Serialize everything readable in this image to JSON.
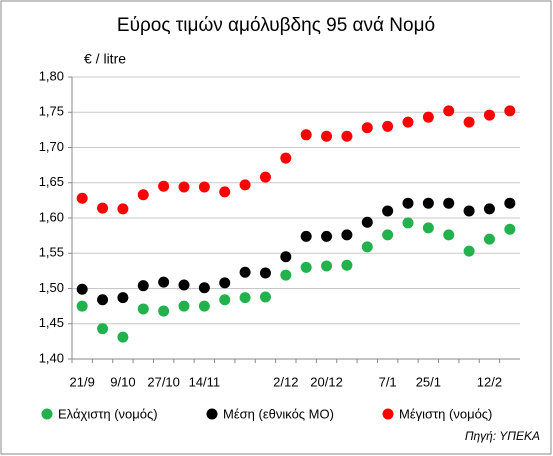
{
  "chart_data": {
    "type": "scatter",
    "title": "Εύρος τιμών αμόλυβδης 95 ανά Νομό",
    "y_label": "€ / litre",
    "source": "Πηγή: ΥΠΕΚΑ",
    "categories": [
      "21/9",
      null,
      "9/10",
      null,
      "27/10",
      null,
      "14/11",
      null,
      null,
      null,
      "2/12",
      null,
      "20/12",
      null,
      null,
      "7/1",
      null,
      "25/1",
      null,
      null,
      "12/2",
      null
    ],
    "series": [
      {
        "name": "Ελάχιστη (νομός)",
        "color": "#22b14c",
        "values": [
          1.475,
          1.443,
          1.431,
          1.471,
          1.468,
          1.475,
          1.475,
          1.484,
          1.487,
          1.488,
          1.519,
          1.53,
          1.532,
          1.533,
          1.559,
          1.576,
          1.593,
          1.586,
          1.576,
          1.553,
          1.57,
          1.584
        ]
      },
      {
        "name": "Μέση (εθνικός ΜΟ)",
        "color": "#000000",
        "values": [
          1.499,
          1.484,
          1.487,
          1.504,
          1.509,
          1.505,
          1.501,
          1.508,
          1.523,
          1.522,
          1.545,
          1.574,
          1.574,
          1.576,
          1.594,
          1.61,
          1.621,
          1.621,
          1.621,
          1.61,
          1.613,
          1.621
        ]
      },
      {
        "name": "Μέγιστη (νομός)",
        "color": "#ff0000",
        "values": [
          1.628,
          1.614,
          1.613,
          1.633,
          1.645,
          1.644,
          1.644,
          1.637,
          1.647,
          1.658,
          1.685,
          1.718,
          1.716,
          1.716,
          1.728,
          1.73,
          1.736,
          1.743,
          1.752,
          1.736,
          1.746,
          1.752
        ]
      }
    ],
    "ylim": [
      1.4,
      1.8
    ],
    "yticks": [
      {
        "value": 1.4,
        "label": "1,40"
      },
      {
        "value": 1.45,
        "label": "1,45"
      },
      {
        "value": 1.5,
        "label": "1,50"
      },
      {
        "value": 1.55,
        "label": "1,55"
      },
      {
        "value": 1.6,
        "label": "1,60"
      },
      {
        "value": 1.65,
        "label": "1,65"
      },
      {
        "value": 1.7,
        "label": "1,70"
      },
      {
        "value": 1.75,
        "label": "1,75"
      },
      {
        "value": 1.8,
        "label": "1,80"
      }
    ],
    "grid": true
  }
}
